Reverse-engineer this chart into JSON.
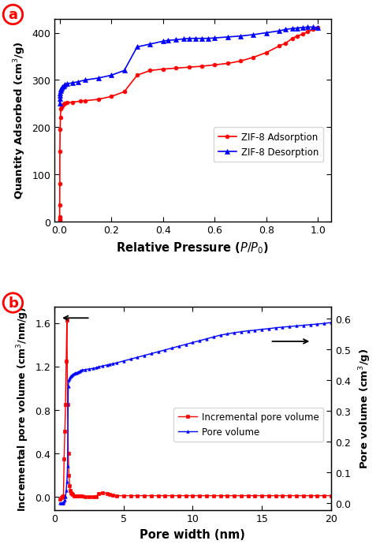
{
  "panel_a": {
    "title": "a",
    "xlabel": "Relative Pressure ($\\mathit{P/P_0}$)",
    "ylabel": "Quantity Adsorbed (cm$^3$/g)",
    "xlim": [
      -0.02,
      1.05
    ],
    "ylim": [
      0,
      430
    ],
    "yticks": [
      0,
      100,
      200,
      300,
      400
    ],
    "xticks": [
      0.0,
      0.2,
      0.4,
      0.6,
      0.8,
      1.0
    ],
    "adsorption_x": [
      5e-05,
      0.0001,
      0.0002,
      0.0004,
      0.0007,
      0.001,
      0.002,
      0.003,
      0.005,
      0.007,
      0.01,
      0.015,
      0.02,
      0.03,
      0.05,
      0.08,
      0.1,
      0.15,
      0.2,
      0.25,
      0.3,
      0.35,
      0.4,
      0.45,
      0.5,
      0.55,
      0.6,
      0.65,
      0.7,
      0.75,
      0.8,
      0.85,
      0.875,
      0.9,
      0.92,
      0.94,
      0.96,
      0.98,
      1.0
    ],
    "adsorption_y": [
      3,
      5,
      10,
      35,
      80,
      148,
      195,
      220,
      238,
      243,
      246,
      249,
      250,
      252,
      253,
      255,
      256,
      259,
      265,
      275,
      310,
      320,
      323,
      325,
      327,
      329,
      332,
      335,
      340,
      348,
      358,
      372,
      378,
      388,
      393,
      397,
      402,
      407,
      411
    ],
    "desorption_x": [
      1.0,
      0.98,
      0.96,
      0.94,
      0.92,
      0.9,
      0.875,
      0.85,
      0.8,
      0.75,
      0.7,
      0.65,
      0.6,
      0.575,
      0.55,
      0.525,
      0.5,
      0.48,
      0.45,
      0.42,
      0.4,
      0.35,
      0.3,
      0.25,
      0.2,
      0.15,
      0.1,
      0.07,
      0.05,
      0.03,
      0.02,
      0.015,
      0.01,
      0.007,
      0.005,
      0.003,
      0.001,
      0.0005,
      0.0002,
      0.0001
    ],
    "desorption_y": [
      411,
      412,
      412,
      411,
      410,
      409,
      407,
      404,
      400,
      396,
      393,
      391,
      389,
      388,
      388,
      388,
      388,
      387,
      385,
      384,
      382,
      376,
      370,
      320,
      310,
      304,
      300,
      296,
      294,
      292,
      290,
      288,
      285,
      283,
      281,
      277,
      273,
      268,
      260,
      251
    ],
    "adsorption_color": "#FF0000",
    "desorption_color": "#0000FF",
    "legend_adsorption": "ZIF-8 Adsorption",
    "legend_desorption": "ZIF-8 Desorption"
  },
  "panel_b": {
    "title": "b",
    "xlabel": "Pore width (nm)",
    "ylabel_left": "Incremental pore volume (cm$^3$/nm/g)",
    "ylabel_right": "Pore volume (cm$^3$/g)",
    "xlim": [
      0,
      20
    ],
    "ylim_left": [
      -0.12,
      1.75
    ],
    "ylim_right": [
      -0.022,
      0.638
    ],
    "yticks_left": [
      0.0,
      0.4,
      0.8,
      1.2,
      1.6
    ],
    "yticks_right": [
      0.0,
      0.1,
      0.2,
      0.3,
      0.4,
      0.5,
      0.6
    ],
    "xticks": [
      0,
      5,
      10,
      15,
      20
    ],
    "incr_x": [
      0.4,
      0.5,
      0.55,
      0.6,
      0.65,
      0.7,
      0.75,
      0.8,
      0.85,
      0.9,
      0.95,
      1.0,
      1.05,
      1.1,
      1.15,
      1.2,
      1.25,
      1.3,
      1.4,
      1.5,
      1.6,
      1.7,
      1.8,
      1.9,
      2.0,
      2.2,
      2.5,
      2.8,
      3.0,
      3.2,
      3.5,
      3.8,
      4.0,
      4.2,
      4.5,
      5.0,
      5.5,
      6.0,
      6.5,
      7.0,
      7.5,
      8.0,
      8.5,
      9.0,
      9.5,
      10.0,
      10.5,
      11.0,
      11.5,
      12.0,
      12.5,
      13.0,
      13.5,
      14.0,
      14.5,
      15.0,
      15.5,
      16.0,
      16.5,
      17.0,
      17.5,
      18.0,
      18.5,
      19.0,
      19.5,
      20.0
    ],
    "incr_y": [
      -0.02,
      -0.01,
      0.0,
      0.0,
      0.01,
      0.35,
      0.6,
      0.85,
      1.25,
      1.63,
      0.85,
      0.4,
      0.2,
      0.1,
      0.06,
      0.04,
      0.03,
      0.02,
      0.01,
      0.01,
      0.01,
      0.005,
      0.005,
      0.005,
      0.005,
      0.003,
      0.003,
      0.003,
      0.003,
      0.03,
      0.04,
      0.03,
      0.02,
      0.015,
      0.01,
      0.01,
      0.01,
      0.01,
      0.01,
      0.01,
      0.01,
      0.01,
      0.01,
      0.01,
      0.01,
      0.01,
      0.01,
      0.01,
      0.01,
      0.01,
      0.01,
      0.01,
      0.01,
      0.01,
      0.01,
      0.01,
      0.01,
      0.01,
      0.01,
      0.01,
      0.01,
      0.01,
      0.01,
      0.01,
      0.01,
      0.01
    ],
    "pore_x": [
      0.4,
      0.5,
      0.55,
      0.6,
      0.65,
      0.7,
      0.75,
      0.8,
      0.85,
      0.9,
      0.95,
      1.0,
      1.05,
      1.1,
      1.15,
      1.2,
      1.25,
      1.3,
      1.4,
      1.5,
      1.6,
      1.7,
      1.8,
      1.9,
      2.0,
      2.2,
      2.5,
      2.8,
      3.0,
      3.2,
      3.5,
      3.8,
      4.0,
      4.2,
      4.5,
      5.0,
      5.5,
      6.0,
      6.5,
      7.0,
      7.5,
      8.0,
      8.5,
      9.0,
      9.5,
      10.0,
      10.5,
      11.0,
      11.5,
      12.0,
      12.5,
      13.0,
      13.5,
      14.0,
      14.5,
      15.0,
      15.5,
      16.0,
      16.5,
      17.0,
      17.5,
      18.0,
      18.5,
      19.0,
      19.5,
      20.0
    ],
    "pore_y": [
      0.0,
      0.0,
      0.0,
      0.0,
      0.0,
      0.005,
      0.01,
      0.02,
      0.04,
      0.07,
      0.12,
      0.38,
      0.4,
      0.405,
      0.41,
      0.413,
      0.415,
      0.417,
      0.42,
      0.422,
      0.424,
      0.426,
      0.428,
      0.43,
      0.432,
      0.434,
      0.436,
      0.438,
      0.44,
      0.443,
      0.446,
      0.449,
      0.451,
      0.453,
      0.456,
      0.462,
      0.468,
      0.474,
      0.48,
      0.486,
      0.492,
      0.498,
      0.504,
      0.51,
      0.516,
      0.522,
      0.528,
      0.534,
      0.54,
      0.546,
      0.55,
      0.554,
      0.557,
      0.56,
      0.562,
      0.565,
      0.567,
      0.57,
      0.572,
      0.574,
      0.576,
      0.578,
      0.58,
      0.582,
      0.584,
      0.587
    ],
    "incr_color": "#FF0000",
    "pore_color": "#0000FF",
    "legend_incr": "Incremental pore volume",
    "legend_pore": "Pore volume"
  },
  "background_color": "#FFFFFF",
  "label_color": "#FF0000"
}
